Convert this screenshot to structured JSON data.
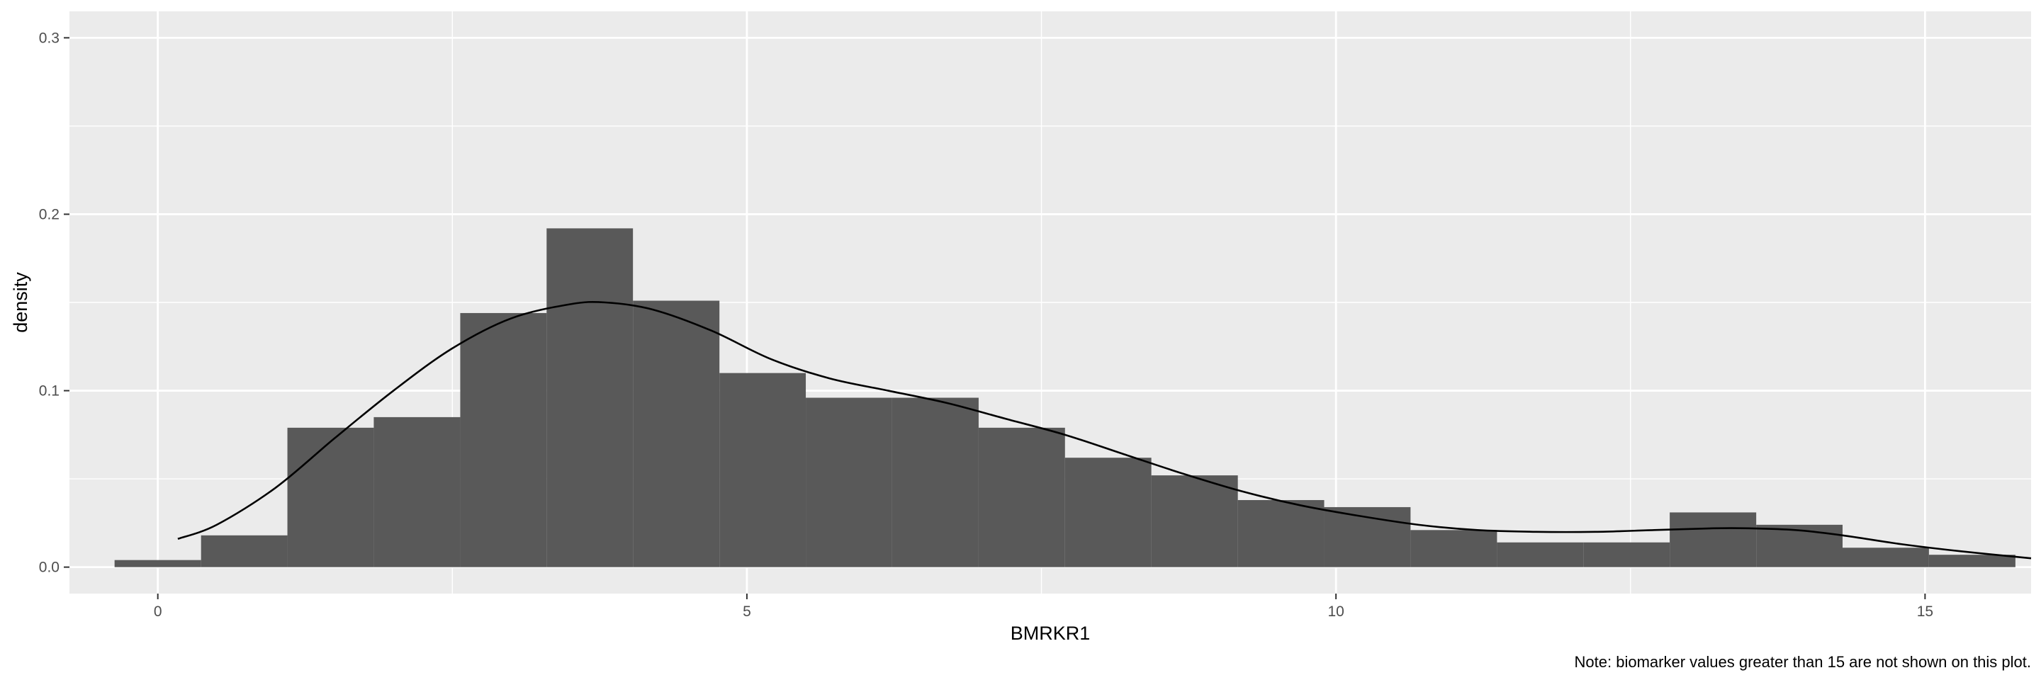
{
  "chart_data": {
    "type": "bar",
    "xlabel": "BMRKR1",
    "ylabel": "density",
    "caption": "Note: biomarker values greater than 15 are not shown on this plot.",
    "xlim": [
      -0.75,
      15.9
    ],
    "ylim": [
      -0.015,
      0.315
    ],
    "x_ticks": [
      0,
      5,
      10,
      15
    ],
    "x_tick_labels": [
      "0",
      "5",
      "10",
      "15"
    ],
    "y_ticks": [
      0.0,
      0.1,
      0.2,
      0.3
    ],
    "y_tick_labels": [
      "0.0",
      "0.1",
      "0.2",
      "0.3"
    ],
    "bin_width": 0.7333,
    "bins": [
      {
        "x0": -0.367,
        "x1": 0.367,
        "density": 0.004
      },
      {
        "x0": 0.367,
        "x1": 1.1,
        "density": 0.018
      },
      {
        "x0": 1.1,
        "x1": 1.833,
        "density": 0.079
      },
      {
        "x0": 1.833,
        "x1": 2.567,
        "density": 0.085
      },
      {
        "x0": 2.567,
        "x1": 3.3,
        "density": 0.144
      },
      {
        "x0": 3.3,
        "x1": 4.033,
        "density": 0.192
      },
      {
        "x0": 4.033,
        "x1": 4.767,
        "density": 0.151
      },
      {
        "x0": 4.767,
        "x1": 5.5,
        "density": 0.11
      },
      {
        "x0": 5.5,
        "x1": 6.233,
        "density": 0.096
      },
      {
        "x0": 6.233,
        "x1": 6.967,
        "density": 0.096
      },
      {
        "x0": 6.967,
        "x1": 7.7,
        "density": 0.079
      },
      {
        "x0": 7.7,
        "x1": 8.433,
        "density": 0.062
      },
      {
        "x0": 8.433,
        "x1": 9.167,
        "density": 0.052
      },
      {
        "x0": 9.167,
        "x1": 9.9,
        "density": 0.038
      },
      {
        "x0": 9.9,
        "x1": 10.633,
        "density": 0.034
      },
      {
        "x0": 10.633,
        "x1": 11.367,
        "density": 0.021
      },
      {
        "x0": 11.367,
        "x1": 12.1,
        "density": 0.014
      },
      {
        "x0": 12.1,
        "x1": 12.833,
        "density": 0.014
      },
      {
        "x0": 12.833,
        "x1": 13.567,
        "density": 0.031
      },
      {
        "x0": 13.567,
        "x1": 14.3,
        "density": 0.024
      },
      {
        "x0": 14.3,
        "x1": 15.033,
        "density": 0.011
      },
      {
        "x0": 15.033,
        "x1": 15.767,
        "density": 0.007
      }
    ],
    "density_curve": {
      "x": [
        0.17,
        0.5,
        1.0,
        1.5,
        2.0,
        2.5,
        3.0,
        3.5,
        3.8,
        4.2,
        4.7,
        5.2,
        5.7,
        6.2,
        6.7,
        7.2,
        7.7,
        8.2,
        8.7,
        9.2,
        9.7,
        10.2,
        10.7,
        11.2,
        11.7,
        12.2,
        12.7,
        13.2,
        13.5,
        13.9,
        14.3,
        14.8,
        15.3,
        15.9
      ],
      "y": [
        0.016,
        0.024,
        0.045,
        0.073,
        0.1,
        0.124,
        0.141,
        0.149,
        0.15,
        0.146,
        0.134,
        0.118,
        0.107,
        0.1,
        0.093,
        0.084,
        0.075,
        0.064,
        0.053,
        0.043,
        0.035,
        0.029,
        0.024,
        0.021,
        0.02,
        0.02,
        0.021,
        0.022,
        0.022,
        0.021,
        0.018,
        0.013,
        0.009,
        0.005
      ]
    },
    "colors": {
      "panel": "#ebebeb",
      "grid_major": "#ffffff",
      "bar_fill": "#595959",
      "curve": "#000000",
      "tick_text": "#4d4d4d"
    },
    "grid": true
  }
}
